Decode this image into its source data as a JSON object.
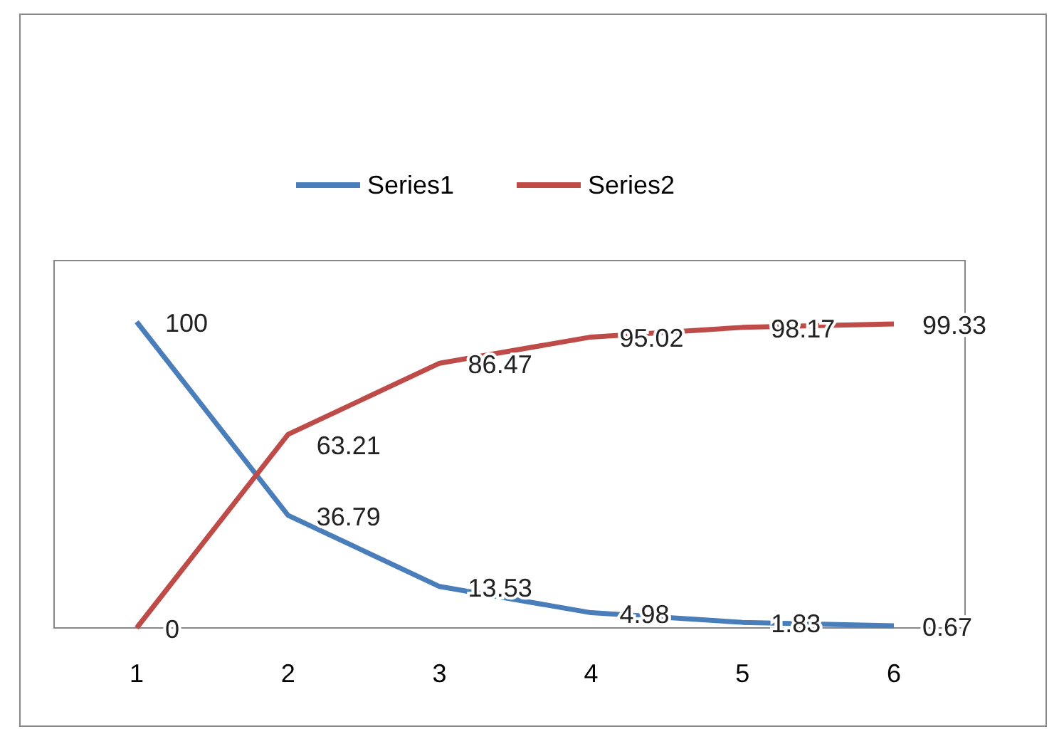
{
  "chart_data": {
    "type": "line",
    "categories": [
      "1",
      "2",
      "3",
      "4",
      "5",
      "6"
    ],
    "series": [
      {
        "name": "Series1",
        "color": "#4a7ebb",
        "values": [
          100,
          36.79,
          13.53,
          4.98,
          1.83,
          0.67
        ]
      },
      {
        "name": "Series2",
        "color": "#be4b48",
        "values": [
          0,
          63.21,
          86.47,
          95.02,
          98.17,
          99.33
        ]
      }
    ],
    "ylim": [
      0,
      120
    ],
    "data_labels": true,
    "legend": "top",
    "tick_labels": "x",
    "marker": "none",
    "line_style": "solid"
  }
}
